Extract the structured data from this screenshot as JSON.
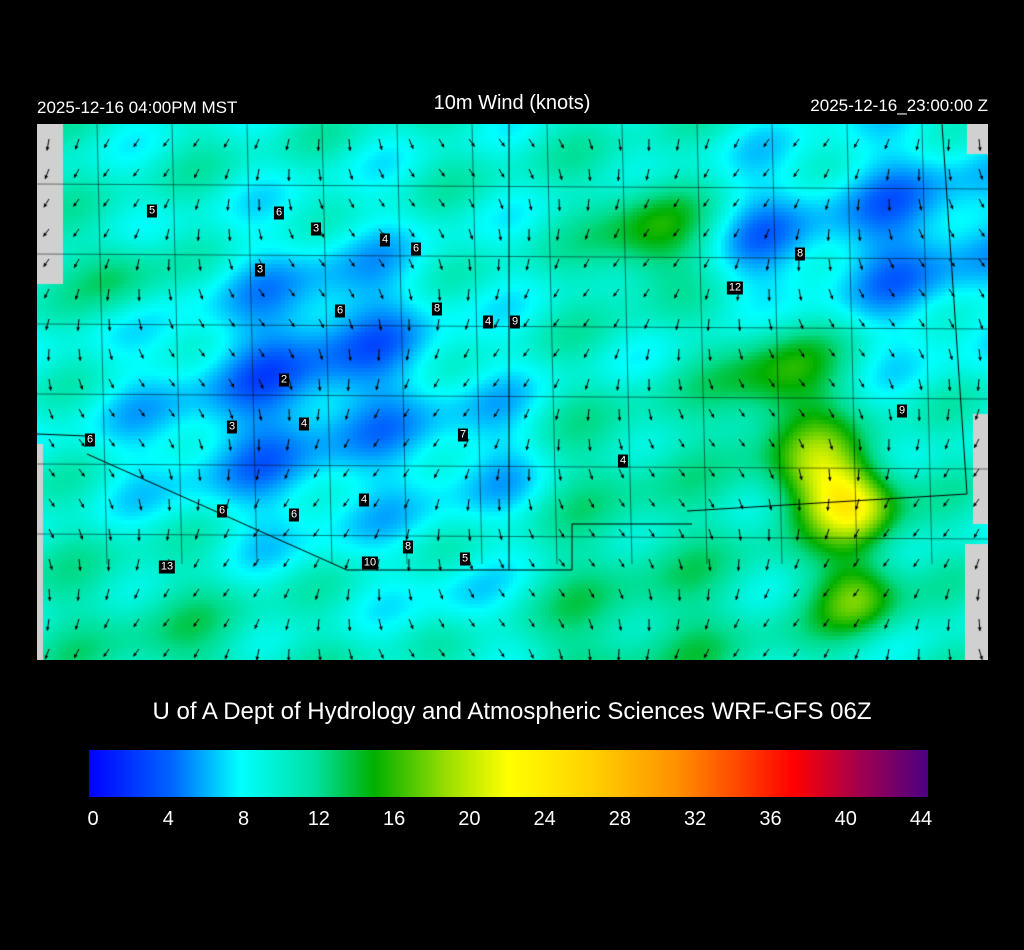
{
  "header": {
    "local_time": "2025-12-16 04:00PM MST",
    "title": "10m Wind (knots)",
    "utc_time": "2025-12-16_23:00:00 Z"
  },
  "credit": "U of A Dept of Hydrology and Atmospheric Sciences WRF-GFS 06Z",
  "colorbar": {
    "ticks": [
      "0",
      "4",
      "8",
      "12",
      "16",
      "20",
      "24",
      "28",
      "32",
      "36",
      "40",
      "44"
    ],
    "min": 0,
    "max": 44,
    "colors": [
      "#0000ff",
      "#00ffff",
      "#00b000",
      "#ffff00",
      "#ffa500",
      "#ff0000",
      "#4b0082"
    ]
  },
  "stations": [
    "5",
    "6",
    "3",
    "4",
    "6",
    "3",
    "6",
    "8",
    "4",
    "9",
    "8",
    "12",
    "2",
    "3",
    "4",
    "7",
    "9",
    "6",
    "4",
    "4",
    "6",
    "6",
    "8",
    "10",
    "5",
    "13"
  ]
}
